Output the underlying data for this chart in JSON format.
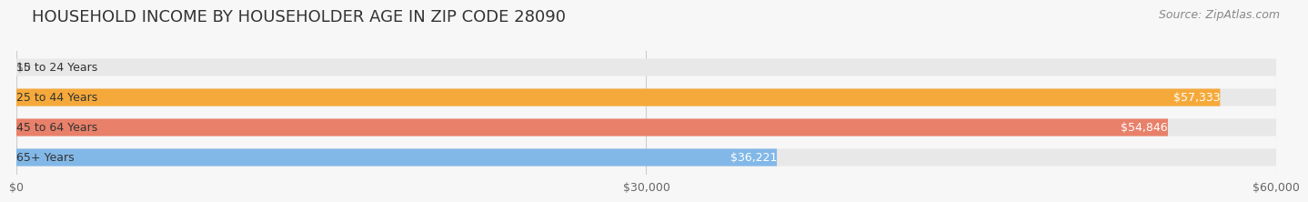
{
  "title": "HOUSEHOLD INCOME BY HOUSEHOLDER AGE IN ZIP CODE 28090",
  "source": "Source: ZipAtlas.com",
  "categories": [
    "15 to 24 Years",
    "25 to 44 Years",
    "45 to 64 Years",
    "65+ Years"
  ],
  "values": [
    0,
    57333,
    54846,
    36221
  ],
  "bar_colors": [
    "#f5a0b5",
    "#f5a93a",
    "#e8806a",
    "#82b8e8"
  ],
  "value_labels": [
    "$0",
    "$57,333",
    "$54,846",
    "$36,221"
  ],
  "xlim": [
    0,
    60000
  ],
  "xticks": [
    0,
    30000,
    60000
  ],
  "xtick_labels": [
    "$0",
    "$30,000",
    "$60,000"
  ],
  "background_color": "#f7f7f7",
  "bar_background_color": "#e8e8e8",
  "title_fontsize": 13,
  "source_fontsize": 9,
  "bar_height": 0.58
}
